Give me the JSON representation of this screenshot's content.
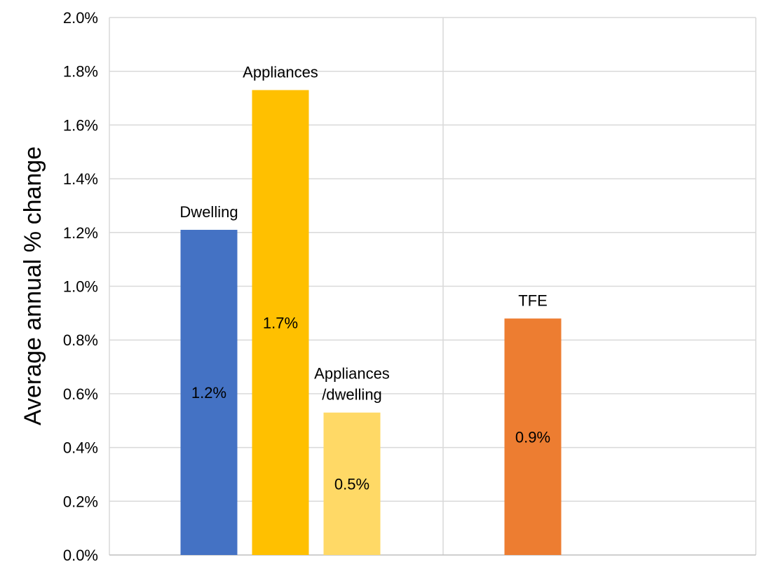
{
  "chart_data": {
    "type": "bar",
    "title": "",
    "xlabel": "",
    "ylabel": "Average annual % change",
    "ylim": [
      0,
      2.0
    ],
    "y_tick_step": 0.2,
    "y_tick_format": "percent_1dp",
    "grid": true,
    "legend": "none",
    "bars": [
      {
        "label_lines": [
          "Dwelling"
        ],
        "value": 1.21,
        "value_label": "1.2%",
        "color": "#4472c4",
        "group": 0
      },
      {
        "label_lines": [
          "Appliances"
        ],
        "value": 1.73,
        "value_label": "1.7%",
        "color": "#ffc000",
        "group": 0
      },
      {
        "label_lines": [
          "Appliances",
          "/dwelling"
        ],
        "value": 0.53,
        "value_label": "0.5%",
        "color": "#ffd966",
        "group": 0
      },
      {
        "label_lines": [
          "TFE"
        ],
        "value": 0.88,
        "value_label": "0.9%",
        "color": "#ed7d31",
        "group": 1
      }
    ]
  }
}
